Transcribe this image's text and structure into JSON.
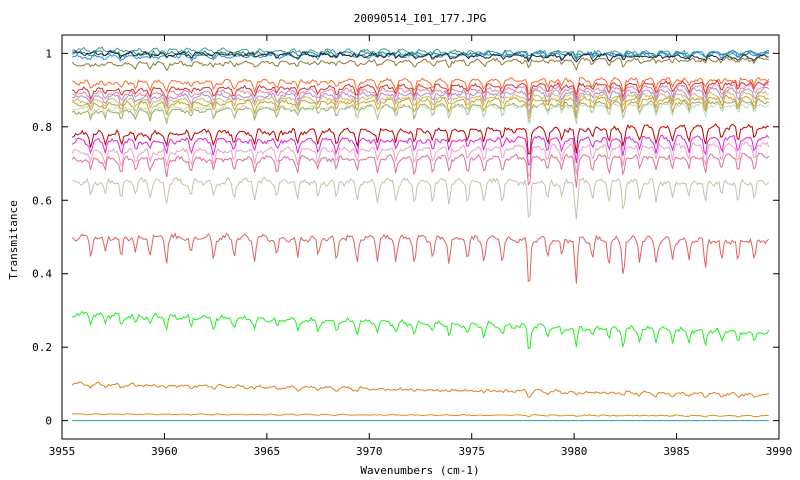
{
  "chart_data": {
    "type": "line",
    "title": "20090514_I01_177.JPG",
    "xlabel": "Wavenumbers (cm-1)",
    "ylabel": "Transmitance",
    "xlim": [
      3955,
      3990
    ],
    "ylim": [
      -0.05,
      1.05
    ],
    "xticks": [
      3955,
      3960,
      3965,
      3970,
      3975,
      3980,
      3985,
      3990
    ],
    "xtick_labels": [
      "3955",
      "3960",
      "3965",
      "3970",
      "3975",
      "3980",
      "3985",
      "3990"
    ],
    "yticks": [
      0,
      0.2,
      0.4,
      0.6,
      0.8,
      1
    ],
    "ytick_labels": [
      "0",
      "0.2",
      "0.4",
      "0.6",
      "0.8",
      "1"
    ],
    "grid": false,
    "legend": "none",
    "x_range_data": [
      3955.5,
      3989.5
    ],
    "absorption_lines": [
      {
        "x": 3956.4,
        "depth": 0.35
      },
      {
        "x": 3957.1,
        "depth": 0.3
      },
      {
        "x": 3957.9,
        "depth": 0.45
      },
      {
        "x": 3958.6,
        "depth": 0.3
      },
      {
        "x": 3959.3,
        "depth": 0.35
      },
      {
        "x": 3960.1,
        "depth": 0.5
      },
      {
        "x": 3961.3,
        "depth": 0.35
      },
      {
        "x": 3962.4,
        "depth": 0.4
      },
      {
        "x": 3963.4,
        "depth": 0.35
      },
      {
        "x": 3964.4,
        "depth": 0.4
      },
      {
        "x": 3965.5,
        "depth": 0.35
      },
      {
        "x": 3966.5,
        "depth": 0.4
      },
      {
        "x": 3967.5,
        "depth": 0.35
      },
      {
        "x": 3968.4,
        "depth": 0.4
      },
      {
        "x": 3969.4,
        "depth": 0.45
      },
      {
        "x": 3970.4,
        "depth": 0.4
      },
      {
        "x": 3971.3,
        "depth": 0.4
      },
      {
        "x": 3972.2,
        "depth": 0.45
      },
      {
        "x": 3973.1,
        "depth": 0.4
      },
      {
        "x": 3973.9,
        "depth": 0.45
      },
      {
        "x": 3974.8,
        "depth": 0.4
      },
      {
        "x": 3975.6,
        "depth": 0.45
      },
      {
        "x": 3976.5,
        "depth": 0.4
      },
      {
        "x": 3977.8,
        "depth": 1.0
      },
      {
        "x": 3978.7,
        "depth": 0.4
      },
      {
        "x": 3979.4,
        "depth": 0.35
      },
      {
        "x": 3980.1,
        "depth": 0.85
      },
      {
        "x": 3980.9,
        "depth": 0.4
      },
      {
        "x": 3981.7,
        "depth": 0.45
      },
      {
        "x": 3982.4,
        "depth": 0.65
      },
      {
        "x": 3983.2,
        "depth": 0.4
      },
      {
        "x": 3984.0,
        "depth": 0.45
      },
      {
        "x": 3984.8,
        "depth": 0.4
      },
      {
        "x": 3985.6,
        "depth": 0.4
      },
      {
        "x": 3986.4,
        "depth": 0.55
      },
      {
        "x": 3987.2,
        "depth": 0.4
      },
      {
        "x": 3988.0,
        "depth": 0.45
      },
      {
        "x": 3988.8,
        "depth": 0.4
      }
    ],
    "series": [
      {
        "color": "#3a9ab5",
        "start": 1.01,
        "end": 1.0,
        "depth": 0.014,
        "noise": 0.004
      },
      {
        "color": "#2e8b57",
        "start": 1.0,
        "end": 1.0,
        "depth": 0.015,
        "noise": 0.004
      },
      {
        "color": "#1e90ff",
        "start": 0.99,
        "end": 1.0,
        "depth": 0.016,
        "noise": 0.004
      },
      {
        "color": "#222222",
        "start": 1.0,
        "end": 0.99,
        "depth": 0.018,
        "noise": 0.004
      },
      {
        "color": "#8b7d3a",
        "start": 0.97,
        "end": 0.985,
        "depth": 0.025,
        "noise": 0.004
      },
      {
        "color": "#ff6a2a",
        "start": 0.92,
        "end": 0.93,
        "depth": 0.05,
        "noise": 0.004
      },
      {
        "color": "#d03030",
        "start": 0.9,
        "end": 0.92,
        "depth": 0.05,
        "noise": 0.004
      },
      {
        "color": "#e08aa0",
        "start": 0.89,
        "end": 0.91,
        "depth": 0.05,
        "noise": 0.004
      },
      {
        "color": "#b08ad0",
        "start": 0.88,
        "end": 0.9,
        "depth": 0.055,
        "noise": 0.004
      },
      {
        "color": "#c8b870",
        "start": 0.87,
        "end": 0.89,
        "depth": 0.055,
        "noise": 0.004
      },
      {
        "color": "#d2a020",
        "start": 0.86,
        "end": 0.88,
        "depth": 0.06,
        "noise": 0.004
      },
      {
        "color": "#a8a060",
        "start": 0.84,
        "end": 0.87,
        "depth": 0.06,
        "noise": 0.004
      },
      {
        "color": "#b8e0b8",
        "start": 0.85,
        "end": 0.86,
        "depth": 0.06,
        "noise": 0.004
      },
      {
        "color": "#bb0000",
        "start": 0.78,
        "end": 0.8,
        "depth": 0.08,
        "noise": 0.005
      },
      {
        "color": "#e020e0",
        "start": 0.76,
        "end": 0.77,
        "depth": 0.08,
        "noise": 0.005
      },
      {
        "color": "#f0a0c0",
        "start": 0.73,
        "end": 0.75,
        "depth": 0.09,
        "noise": 0.005
      },
      {
        "color": "#e07090",
        "start": 0.71,
        "end": 0.72,
        "depth": 0.09,
        "noise": 0.005
      },
      {
        "color": "#c8c0a8",
        "start": 0.65,
        "end": 0.65,
        "depth": 0.12,
        "noise": 0.006
      },
      {
        "color": "#e06060",
        "start": 0.5,
        "end": 0.49,
        "depth": 0.14,
        "noise": 0.006
      },
      {
        "color": "#22ee22",
        "start": 0.29,
        "end": 0.24,
        "depth": 0.07,
        "noise": 0.005
      },
      {
        "color": "#e08020",
        "start": 0.1,
        "end": 0.07,
        "depth": 0.015,
        "noise": 0.003
      },
      {
        "color": "#e09020",
        "start": 0.018,
        "end": 0.013,
        "depth": 0.003,
        "noise": 0.001
      },
      {
        "color": "#20a0a0",
        "start": 0.0,
        "end": 0.0,
        "depth": 0.0,
        "noise": 0.0
      }
    ]
  }
}
